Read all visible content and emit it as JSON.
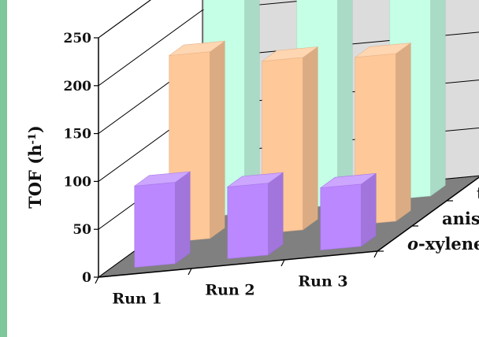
{
  "chart_data": {
    "type": "bar",
    "subtype": "3d-grouped",
    "title": "",
    "categories": [
      "Run 1",
      "Run 2",
      "Run 3"
    ],
    "ylabel_main": "TOF (h",
    "ylabel_sup": "-1",
    "ylabel_close": ")",
    "ylim": [
      0,
      250
    ],
    "yticks": [
      "0",
      "50",
      "100",
      "150",
      "200",
      "250"
    ],
    "grid": true,
    "series": [
      {
        "name": "o-xylene",
        "name_prefix": "o",
        "name_rest": "-xylene",
        "values": [
          85,
          75,
          65
        ],
        "color": "#bb88ff"
      },
      {
        "name": "anisole",
        "name_prefix": "",
        "name_rest": "anisole",
        "values": [
          195,
          180,
          175
        ],
        "color": "#ffc898"
      },
      {
        "name": "toluene",
        "name_prefix": "",
        "name_rest": "toluene",
        "values": [
          245,
          240,
          235
        ],
        "color": "#c5ffe6"
      }
    ],
    "colors": {
      "floor": "#808080",
      "wall": "#dcdcdc",
      "left_border": "#7dc79a"
    }
  }
}
